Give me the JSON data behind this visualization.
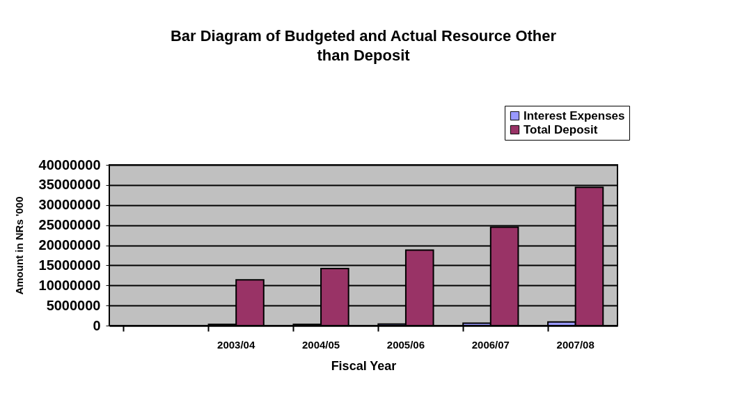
{
  "chart_data": {
    "type": "bar",
    "title": "Bar Diagram of Budgeted and Actual Resource Other than Deposit",
    "xlabel": "Fiscal Year",
    "ylabel": "Amount in NRs '000",
    "categories": [
      null,
      "2003/04",
      "2004/05",
      "2005/06",
      "2006/07",
      "2007/08"
    ],
    "series": [
      {
        "name": "Interest Expenses",
        "color": "#9999ff",
        "values": [
          null,
          300000,
          300000,
          400000,
          600000,
          900000
        ]
      },
      {
        "name": "Total Deposit",
        "color": "#993366",
        "values": [
          null,
          11400000,
          14200000,
          18800000,
          24500000,
          34400000
        ]
      }
    ],
    "ylim": [
      0,
      40000000
    ],
    "yticks": [
      0,
      5000000,
      10000000,
      15000000,
      20000000,
      25000000,
      30000000,
      35000000,
      40000000
    ],
    "grid": "y",
    "legend": "top right"
  }
}
